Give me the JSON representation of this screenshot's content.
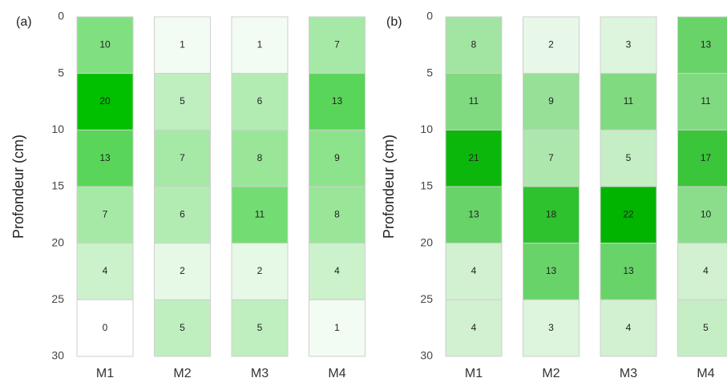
{
  "chart_data": [
    {
      "type": "heatmap",
      "panel": "(a)",
      "ylabel": "Profondeur (cm)",
      "categories": [
        "M1",
        "M2",
        "M3",
        "M4"
      ],
      "values": [
        [
          10,
          20,
          13,
          7,
          4,
          0
        ],
        [
          1,
          5,
          7,
          6,
          2,
          5
        ],
        [
          1,
          6,
          8,
          11,
          2,
          5
        ],
        [
          7,
          13,
          9,
          8,
          4,
          1
        ]
      ],
      "ylim": [
        0,
        30
      ],
      "yticks": [
        0,
        5,
        10,
        15,
        20,
        25,
        30
      ],
      "colors": [
        "#ffffff",
        "#00c000"
      ]
    },
    {
      "type": "heatmap",
      "panel": "(b)",
      "ylabel": "Profondeur (cm)",
      "categories": [
        "M1",
        "M2",
        "M3",
        "M4"
      ],
      "values": [
        [
          8,
          11,
          21,
          13,
          4,
          4
        ],
        [
          2,
          9,
          7,
          18,
          13,
          3
        ],
        [
          3,
          11,
          5,
          22,
          13,
          4
        ],
        [
          13,
          11,
          17,
          10,
          4,
          5
        ]
      ],
      "ylim": [
        0,
        30
      ],
      "yticks": [
        0,
        5,
        10,
        15,
        20,
        25,
        30
      ],
      "colors": [
        "#ffffff",
        "#00b400"
      ]
    }
  ]
}
